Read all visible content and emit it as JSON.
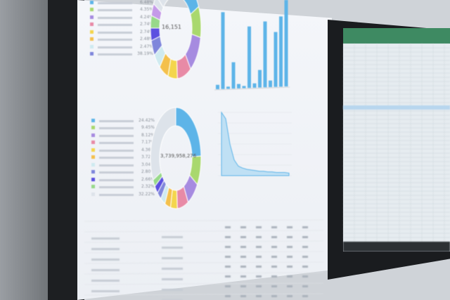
{
  "dashboard": {
    "donut_top": {
      "center_value": "16,151",
      "percentages": [
        "6.48%",
        "4.35%",
        "4.24%",
        "2.74%",
        "2.74%",
        "2.48%",
        "2.47%",
        "38.19%"
      ],
      "slices": [
        18,
        10,
        12,
        9,
        6,
        6,
        5,
        5,
        4,
        4,
        4,
        3,
        14
      ],
      "colors": [
        "#5db4e8",
        "#a9d86e",
        "#a68be0",
        "#e88aa6",
        "#f4d54c",
        "#f4c04c",
        "#cfeaf0",
        "#7f86db",
        "#5b4fe0",
        "#98d98a",
        "#c59ae8",
        "#dde3ea",
        "#dde3ea"
      ]
    },
    "donut_bottom": {
      "center_value": "3,739,958,276",
      "percentages": [
        "24.42%",
        "9.45%",
        "8.12%",
        "7.17%",
        "4.36%",
        "3.72%",
        "3.04%",
        "2.80%",
        "2.66%",
        "2.32%",
        "32.22%"
      ],
      "slices": [
        24.42,
        9.45,
        8.12,
        7.17,
        4.36,
        3.72,
        3.04,
        2.8,
        2.66,
        2.32,
        32.22
      ],
      "colors": [
        "#5db4e8",
        "#a9d86e",
        "#a68be0",
        "#e88aa6",
        "#f4d54c",
        "#f4c04c",
        "#cfeaf0",
        "#7f86db",
        "#5b4fe0",
        "#98d98a",
        "#dde3ea"
      ]
    },
    "bar_chart": {
      "values": [
        2,
        35,
        1,
        12,
        2,
        1,
        28,
        2,
        8,
        30,
        3,
        25,
        32,
        40
      ]
    },
    "area_chart": {
      "values": [
        1,
        0.9,
        0.5,
        0.25,
        0.15,
        0.12,
        0.1,
        0.09,
        0.08,
        0.07,
        0.07,
        0.06,
        0.06,
        0.05,
        0.05,
        0.05,
        0.04
      ]
    },
    "colors": {
      "accent": "#5db4e8",
      "spreadsheet_header": "#3e8a62"
    }
  }
}
